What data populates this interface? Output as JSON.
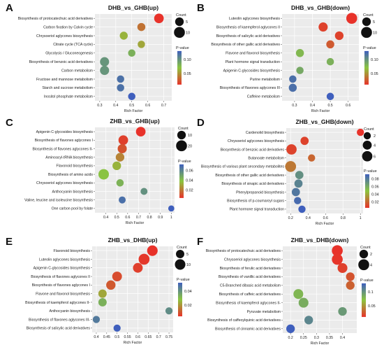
{
  "colors": {
    "low": "#e8322a",
    "mid": "#8cc63f",
    "high": "#3f5fbd",
    "panel_bg": "#ebebeb",
    "grid": "#ffffff"
  },
  "chart_data": [
    {
      "type": "scatter",
      "panel": "A",
      "title": "DHB_vs_GHB(up)",
      "xlabel": "Rich Factor",
      "xlim": [
        0.27,
        0.75
      ],
      "xticks": [
        "0.3",
        "0.4",
        "0.5",
        "0.6",
        "0.7"
      ],
      "categories": [
        "Biosynthesis of protocatechuic acid derivatives",
        "Carbon fixation by Calvin cycle",
        "Chrysoeriol aglycones biosynthesis",
        "Citrate cycle (TCA cycle)",
        "Glycolysis / Gluconeogenesis",
        "Biosynthesis of benzoic acid derivatives",
        "Carbon metabolism",
        "Fructose and mannose metabolism",
        "Starch and sucrose metabolism",
        "Inositol phosphate metabolism"
      ],
      "x": [
        0.67,
        0.56,
        0.45,
        0.56,
        0.5,
        0.33,
        0.33,
        0.43,
        0.43,
        0.5
      ],
      "count": [
        7,
        4,
        4,
        3,
        3,
        6,
        6,
        3,
        3,
        3
      ],
      "pvalue": [
        0.005,
        0.03,
        0.055,
        0.05,
        0.075,
        0.09,
        0.09,
        0.11,
        0.11,
        0.12
      ],
      "size_legend": {
        "title": "Count",
        "values": [
          "5",
          "10"
        ]
      },
      "color_legend": {
        "title": "P-value",
        "ticks": [
          "0.10",
          "0.05"
        ]
      }
    },
    {
      "type": "scatter",
      "panel": "B",
      "title": "DHB_vs_GHB(down)",
      "xlabel": "Rich Factor",
      "xlim": [
        0.23,
        0.66
      ],
      "xticks": [
        "0.3",
        "0.4",
        "0.5",
        "0.6"
      ],
      "categories": [
        "Luteolin aglycones biosynthesis",
        "Biosynthesis of kaempferol aglycones II",
        "Biosynthesis of salicylic acid derivatives",
        "Biosynthesis of other gallic acid derivatives",
        "Flavone and flavonol biosynthesis",
        "Plant hormone signal transduction",
        "Apigenin C-glycosides biosynthesis",
        "Purine metabolism",
        "Biosynthesis of flavones aglycones III",
        "Caffeine metabolism"
      ],
      "x": [
        0.62,
        0.46,
        0.55,
        0.5,
        0.33,
        0.5,
        0.33,
        0.29,
        0.29,
        0.5
      ],
      "count": [
        10,
        6,
        5,
        4,
        4,
        3,
        3,
        3,
        4,
        3
      ],
      "pvalue": [
        0.003,
        0.01,
        0.01,
        0.02,
        0.075,
        0.08,
        0.085,
        0.12,
        0.12,
        0.13
      ],
      "size_legend": {
        "title": "Count",
        "values": [
          "5",
          "10"
        ]
      },
      "color_legend": {
        "title": "P-value",
        "ticks": [
          "0.10",
          "0.05"
        ]
      }
    },
    {
      "type": "scatter",
      "panel": "C",
      "title": "ZHB_vs_GHB(up)",
      "xlabel": "Rich Factor",
      "xlim": [
        0.3,
        1.03
      ],
      "xticks": [
        "0.4",
        "0.5",
        "0.6",
        "0.7",
        "0.8",
        "0.9",
        "1"
      ],
      "categories": [
        "Apigenin C-glycosides biosynthesis",
        "Biosynthesis of flavones aglycones I",
        "Biosynthesis of flavones aglycones II-",
        "Aminoacyl-tRNA biosynthesis",
        "Flavonoid biosynthesis",
        "Biosynthesis of amino acids",
        "Chrysoeriol aglycones biosynthesis",
        "Anthocyanin biosynthesis",
        "Valine, leucine and isoleucine biosynthesis",
        "One carbon pool by folate"
      ],
      "x": [
        0.72,
        0.56,
        0.55,
        0.53,
        0.5,
        0.38,
        0.53,
        0.75,
        0.55,
        1.0
      ],
      "count": [
        14,
        14,
        12,
        10,
        10,
        18,
        6,
        5,
        5,
        3
      ],
      "pvalue": [
        0.003,
        0.006,
        0.01,
        0.02,
        0.03,
        0.035,
        0.04,
        0.05,
        0.06,
        0.065
      ],
      "size_legend": {
        "title": "Count",
        "values": [
          "10",
          "20"
        ]
      },
      "color_legend": {
        "title": "P-value",
        "ticks": [
          "0.06",
          "0.04",
          "0.02"
        ]
      }
    },
    {
      "type": "scatter",
      "panel": "D",
      "title": "ZHB_vs_GHB(down)",
      "xlabel": "Rich Factor",
      "xlim": [
        0.15,
        1.03
      ],
      "xticks": [
        "0.2",
        "0.4",
        "0.6",
        "0.8",
        "1"
      ],
      "categories": [
        "Cardenolid biosynthesis",
        "Chrysoeriol aglycones biosynthesis",
        "Biosynthesis of benzoic acid derivatives",
        "Butanoate metabolism",
        "Biosynthesis of various plant secondary metabolites",
        "Biosynthesis of other gallic acid derivatives",
        "Biosynthesis of sinapic acid derivatives",
        "Phenylpropanoid biosynthesis",
        "Biosynthesis of p-coumaroyl sugars",
        "Plant hormone signal transduction"
      ],
      "x": [
        1.0,
        0.36,
        0.21,
        0.44,
        0.2,
        0.3,
        0.29,
        0.26,
        0.28,
        0.33
      ],
      "count": [
        2,
        3,
        6,
        2,
        7,
        3,
        3,
        3,
        2,
        2
      ],
      "pvalue": [
        0.005,
        0.01,
        0.01,
        0.02,
        0.025,
        0.07,
        0.075,
        0.08,
        0.085,
        0.09
      ],
      "size_legend": {
        "title": "Count",
        "values": [
          "2",
          "4",
          "6"
        ]
      },
      "color_legend": {
        "title": "P-value",
        "ticks": [
          "0.08",
          "0.06",
          "0.04",
          "0.02"
        ]
      }
    },
    {
      "type": "scatter",
      "panel": "E",
      "title": "ZHB_vs_DHB(up)",
      "xlabel": "Rich Factor",
      "xlim": [
        0.38,
        0.77
      ],
      "xticks": [
        "0.4",
        "0.45",
        "0.5",
        "0.55",
        "0.6",
        "0.65",
        "0.7",
        "0.75"
      ],
      "categories": [
        "Flavonoid biosynthesis",
        "Luteolin aglycones biosynthesis",
        "Apigenin C-glycosides biosynthesis",
        "Biosynthesis of flavones aglycones II",
        "Biosynthesis of flavones aglycones I",
        "Flavone and flavonol biosynthesis",
        "Biosynthesis of kaempferol aglycones II-",
        "Anthocyanin biosynthesis",
        "Biosynthesis of flavones aglycones III-",
        "Biosynthesis of salicylic acid derivatives"
      ],
      "x": [
        0.67,
        0.63,
        0.6,
        0.5,
        0.47,
        0.43,
        0.43,
        0.75,
        0.4,
        0.5
      ],
      "count": [
        10,
        11,
        8,
        8,
        7,
        5,
        5,
        3,
        3,
        3
      ],
      "pvalue": [
        0.002,
        0.003,
        0.004,
        0.006,
        0.008,
        0.02,
        0.03,
        0.038,
        0.042,
        0.048
      ],
      "size_legend": {
        "title": "Count",
        "values": [
          "5",
          "10"
        ]
      },
      "color_legend": {
        "title": "P-value",
        "ticks": [
          "0.04",
          "0.02"
        ]
      }
    },
    {
      "type": "scatter",
      "panel": "F",
      "title": "ZHB_vs_DHB(down)",
      "xlabel": "Rich Factor",
      "xlim": [
        0.17,
        0.455
      ],
      "xticks": [
        "0.2",
        "0.25",
        "0.3",
        "0.35",
        "0.4"
      ],
      "categories": [
        "Biosynthesis of protocatechuic acid derivatives",
        "Chrysoeriol aglycones biosynthesis",
        "Biosynthesis of ferulic acid derivatives",
        "Biosynthesis of vanillic acid derivatives",
        "C5-Branched dibasic acid metabolism",
        "Biosynthesis of caffeic acid derivatives",
        "Biosynthesis of kaempferol aglycones II-",
        "Pyruvate metabolism",
        "Biosynthesis of caffeoylquinic acid derivatives",
        "Biosynthesis of cinnamic acid derivatives"
      ],
      "x": [
        0.38,
        0.38,
        0.4,
        0.43,
        0.43,
        0.23,
        0.25,
        0.4,
        0.27,
        0.2
      ],
      "count": [
        4,
        4,
        3,
        2,
        2,
        3,
        3,
        2,
        2,
        2
      ],
      "pvalue": [
        0.003,
        0.004,
        0.008,
        0.015,
        0.02,
        0.065,
        0.07,
        0.08,
        0.09,
        0.11
      ],
      "size_legend": {
        "title": "Count",
        "values": [
          "2",
          "4"
        ]
      },
      "color_legend": {
        "title": "P-value",
        "ticks": [
          "0.1",
          "0.05"
        ]
      }
    }
  ]
}
